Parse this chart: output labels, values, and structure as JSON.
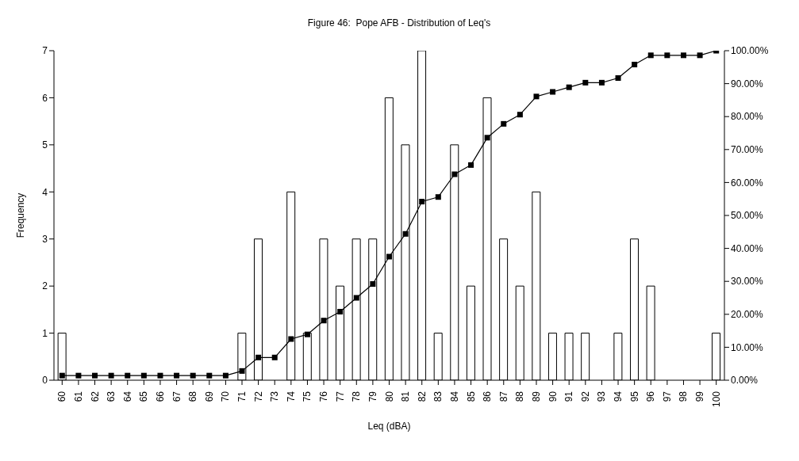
{
  "chart_data": {
    "type": "bar",
    "title": "Figure 46:  Pope AFB - Distribution of Leq's",
    "xlabel": "Leq (dBA)",
    "ylabel": "Frequency",
    "categories": [
      "60",
      "61",
      "62",
      "63",
      "64",
      "65",
      "66",
      "67",
      "68",
      "69",
      "70",
      "71",
      "72",
      "73",
      "74",
      "75",
      "76",
      "77",
      "78",
      "79",
      "80",
      "81",
      "82",
      "83",
      "84",
      "85",
      "86",
      "87",
      "88",
      "89",
      "90",
      "91",
      "92",
      "93",
      "94",
      "95",
      "96",
      "97",
      "98",
      "99",
      "100"
    ],
    "series": [
      {
        "color": "#ffffff",
        "values": [
          1,
          0,
          0,
          0,
          0,
          0,
          0,
          0,
          0,
          0,
          0,
          1,
          3,
          0,
          4,
          1,
          3,
          2,
          3,
          3,
          6,
          5,
          7,
          1,
          5,
          2,
          6,
          3,
          2,
          4,
          1,
          1,
          1,
          0,
          1,
          3,
          2,
          0,
          0,
          0,
          1
        ]
      },
      {
        "type": "line",
        "axis": "y2",
        "color": "#000000",
        "marker": "square",
        "values": [
          1.4,
          1.4,
          1.4,
          1.4,
          1.4,
          1.4,
          1.4,
          1.4,
          1.4,
          1.4,
          1.4,
          2.8,
          6.9,
          6.9,
          12.5,
          13.9,
          18.1,
          20.8,
          25,
          29.2,
          37.5,
          44.4,
          54.2,
          55.6,
          62.5,
          65.3,
          73.6,
          77.8,
          80.6,
          86.1,
          87.5,
          88.9,
          90.3,
          90.3,
          91.7,
          95.8,
          98.6,
          98.6,
          98.6,
          98.6,
          100
        ]
      }
    ],
    "ylim": [
      0,
      7
    ],
    "yticks": [
      0,
      1,
      2,
      3,
      4,
      5,
      6,
      7
    ],
    "y2lim": [
      0,
      100
    ],
    "y2ticks": [
      {
        "value": 0,
        "label": "0.00%"
      },
      {
        "value": 10,
        "label": "10.00%"
      },
      {
        "value": 20,
        "label": "20.00%"
      },
      {
        "value": 30,
        "label": "30.00%"
      },
      {
        "value": 40,
        "label": "40.00%"
      },
      {
        "value": 50,
        "label": "50.00%"
      },
      {
        "value": 60,
        "label": "60.00%"
      },
      {
        "value": 70,
        "label": "70.00%"
      },
      {
        "value": 80,
        "label": "80.00%"
      },
      {
        "value": 90,
        "label": "90.00%"
      },
      {
        "value": 100,
        "label": "100.00%"
      }
    ]
  }
}
